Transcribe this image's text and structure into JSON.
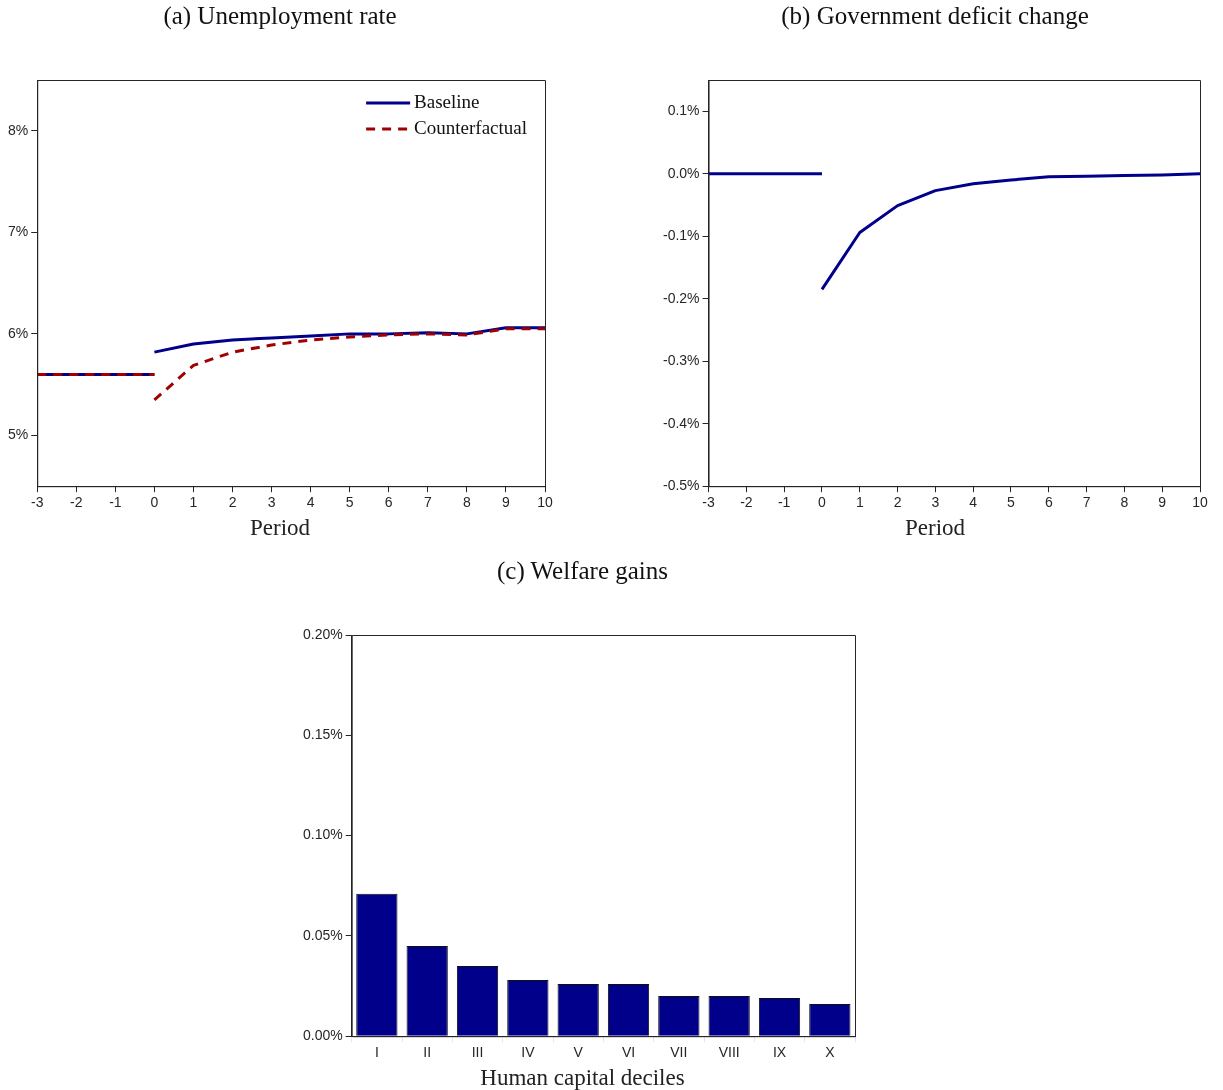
{
  "chart_data": [
    {
      "type": "line",
      "title": "(a)  Unemployment rate",
      "xlabel": "Period",
      "xlim": [
        -3,
        10
      ],
      "xticks": [
        -3,
        -2,
        -1,
        0,
        1,
        2,
        3,
        4,
        5,
        6,
        7,
        8,
        9,
        10
      ],
      "ylim": [
        4.5,
        8.5
      ],
      "yticks": [
        {
          "value": 5,
          "label": "5%"
        },
        {
          "value": 6,
          "label": "6%"
        },
        {
          "value": 7,
          "label": "7%"
        },
        {
          "value": 8,
          "label": "8%"
        }
      ],
      "legend": "top right",
      "marker": "none",
      "series": [
        {
          "name": "Baseline",
          "color": "#00008b",
          "line_style": "solid",
          "x": [
            0,
            1,
            2,
            3,
            4,
            5,
            6,
            7,
            8,
            9,
            10
          ],
          "values": [
            5.82,
            5.9,
            5.94,
            5.96,
            5.98,
            6.0,
            6.0,
            6.01,
            6.0,
            6.06,
            6.06
          ]
        },
        {
          "name": "Counterfactual",
          "color": "#a00000",
          "line_style": "dashed",
          "x": [
            0,
            1,
            2,
            3,
            4,
            5,
            6,
            7,
            8,
            9,
            10
          ],
          "values": [
            5.35,
            5.69,
            5.82,
            5.89,
            5.94,
            5.97,
            5.99,
            6.0,
            5.99,
            6.05,
            6.05
          ]
        },
        {
          "color": "#00008b",
          "line_style": "solid",
          "x": [
            -3,
            -2,
            -1,
            0
          ],
          "values": [
            5.6,
            5.6,
            5.6,
            5.6
          ]
        },
        {
          "color": "#a00000",
          "line_style": "dashed",
          "x": [
            -3,
            -2,
            -1,
            0
          ],
          "values": [
            5.6,
            5.6,
            5.6,
            5.6
          ]
        }
      ]
    },
    {
      "type": "line",
      "title": "(b)  Government deficit change",
      "xlabel": "Period",
      "xlim": [
        -3,
        10
      ],
      "xticks": [
        -3,
        -2,
        -1,
        0,
        1,
        2,
        3,
        4,
        5,
        6,
        7,
        8,
        9,
        10
      ],
      "ylim": [
        -0.5,
        0.15
      ],
      "yticks": [
        {
          "value": -0.5,
          "label": "-0.5%"
        },
        {
          "value": -0.4,
          "label": "-0.4%"
        },
        {
          "value": -0.3,
          "label": "-0.3%"
        },
        {
          "value": -0.2,
          "label": "-0.2%"
        },
        {
          "value": -0.1,
          "label": "-0.1%"
        },
        {
          "value": 0,
          "label": "0.0%"
        },
        {
          "value": 0.1,
          "label": "0.1%"
        }
      ],
      "marker": "none",
      "series": [
        {
          "color": "#00008b",
          "line_style": "solid",
          "x": [
            -3,
            -2,
            -1,
            0
          ],
          "values": [
            0,
            0,
            0,
            0
          ]
        },
        {
          "color": "#00008b",
          "line_style": "solid",
          "x": [
            0,
            1,
            2,
            3,
            4,
            5,
            6,
            7,
            8,
            9,
            10
          ],
          "values": [
            -0.185,
            -0.094,
            -0.051,
            -0.027,
            -0.016,
            -0.01,
            -0.005,
            -0.004,
            -0.003,
            -0.002,
            0
          ]
        }
      ]
    },
    {
      "type": "bar",
      "title": "(c)  Welfare gains",
      "xlabel": "Human capital deciles",
      "categories": [
        "I",
        "II",
        "III",
        "IV",
        "V",
        "VI",
        "VII",
        "VIII",
        "IX",
        "X"
      ],
      "ylim": [
        0,
        0.2
      ],
      "yticks": [
        {
          "value": 0,
          "label": "0.00%"
        },
        {
          "value": 0.05,
          "label": "0.05%"
        },
        {
          "value": 0.1,
          "label": "0.10%"
        },
        {
          "value": 0.15,
          "label": "0.15%"
        },
        {
          "value": 0.2,
          "label": "0.20%"
        }
      ],
      "series": [
        {
          "color": "#00008b",
          "values": [
            0.071,
            0.045,
            0.035,
            0.028,
            0.026,
            0.026,
            0.02,
            0.02,
            0.019,
            0.016
          ]
        }
      ]
    }
  ]
}
